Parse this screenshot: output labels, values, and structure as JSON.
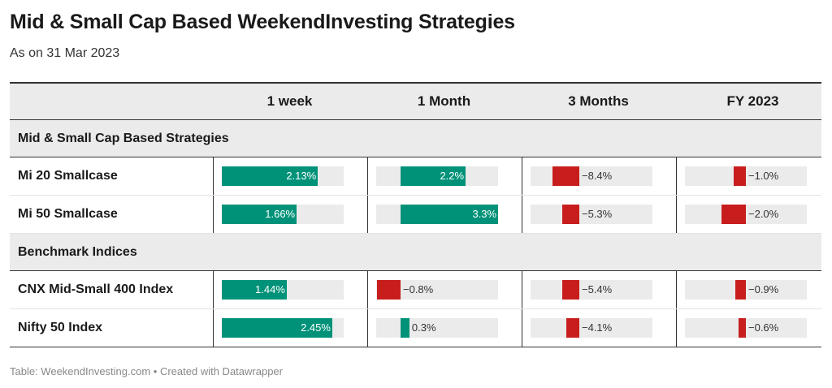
{
  "title": "Mid & Small Cap Based WeekendInvesting Strategies",
  "subtitle": "As on 31 Mar 2023",
  "footer": "Table: WeekendInvesting.com • Created with Datawrapper",
  "colors": {
    "positive": "#009279",
    "negative": "#c71e1d",
    "track": "#ebebeb"
  },
  "chart_data": {
    "type": "table",
    "columns": [
      "1 week",
      "1 Month",
      "3 Months",
      "FY 2023"
    ],
    "groups": [
      {
        "label": "Mid & Small Cap Based Strategies",
        "rows": [
          {
            "name": "Mi 20 Smallcase",
            "values": [
              2.13,
              2.2,
              -8.4,
              -1.0
            ],
            "labels": [
              "2.13%",
              "2.2%",
              "−8.4%",
              "−1.0%"
            ]
          },
          {
            "name": "Mi 50 Smallcase",
            "values": [
              1.66,
              3.3,
              -5.3,
              -2.0
            ],
            "labels": [
              "1.66%",
              "3.3%",
              "−5.3%",
              "−2.0%"
            ]
          }
        ]
      },
      {
        "label": "Benchmark Indices",
        "rows": [
          {
            "name": "CNX Mid-Small 400 Index",
            "values": [
              1.44,
              -0.8,
              -5.4,
              -0.9
            ],
            "labels": [
              "1.44%",
              "−0.8%",
              "−5.4%",
              "−0.9%"
            ]
          },
          {
            "name": "Nifty 50 Index",
            "values": [
              2.45,
              0.3,
              -4.1,
              -0.6
            ],
            "labels": [
              "2.45%",
              "0.3%",
              "−4.1%",
              "−0.6%"
            ]
          }
        ]
      }
    ]
  }
}
